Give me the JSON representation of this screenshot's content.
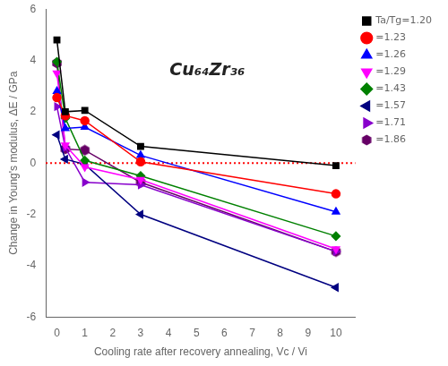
{
  "chart_data": {
    "type": "line",
    "x": [
      0,
      0.3,
      1,
      3,
      10
    ],
    "series": [
      {
        "name": "Ta/Tg=1.20",
        "color": "black",
        "marker": "square",
        "values": [
          4.8,
          2.0,
          2.05,
          0.65,
          -0.1
        ]
      },
      {
        "name": "=1.23",
        "color": "red",
        "marker": "circle",
        "values": [
          2.55,
          1.85,
          1.65,
          0.05,
          -1.2
        ]
      },
      {
        "name": "=1.26",
        "color": "blue",
        "marker": "triangle-up",
        "values": [
          2.8,
          1.35,
          1.4,
          0.3,
          -1.9
        ]
      },
      {
        "name": "=1.29",
        "color": "magenta",
        "marker": "triangle-down",
        "values": [
          3.5,
          0.7,
          -0.15,
          -0.65,
          -3.35
        ]
      },
      {
        "name": "=1.43",
        "color": "green",
        "marker": "diamond",
        "values": [
          3.95,
          1.75,
          0.1,
          -0.5,
          -2.85
        ]
      },
      {
        "name": "=1.57",
        "color": "#000080",
        "marker": "triangle-left",
        "values": [
          1.1,
          0.15,
          -0.05,
          -2.0,
          -4.85
        ]
      },
      {
        "name": "=1.71",
        "color": "#8800cc",
        "marker": "triangle-right",
        "values": [
          2.2,
          0.6,
          -0.75,
          -0.85,
          -3.45
        ]
      },
      {
        "name": "=1.86",
        "color": "#660066",
        "marker": "hexagon",
        "values": [
          3.9,
          0.55,
          0.5,
          -0.75,
          -3.45
        ]
      }
    ],
    "xlabel": "Cooling rate after recovery annealing, Vc / Vi",
    "ylabel": "Change in Young's modulus, ΔE / GPa",
    "xlim": [
      -0.4,
      10.7
    ],
    "ylim": [
      -6,
      6
    ],
    "xticks": [
      0,
      1,
      2,
      3,
      4,
      5,
      6,
      7,
      8,
      9,
      10
    ],
    "yticks": [
      -6,
      -4,
      -2,
      0,
      2,
      4,
      6
    ],
    "annotations": [
      {
        "text": "Cu₆₄Zr₃₆"
      }
    ],
    "reference_lines": [
      {
        "y": 0,
        "color": "red",
        "line_style": "dotted"
      }
    ],
    "legend": "upper right",
    "grid": false
  }
}
